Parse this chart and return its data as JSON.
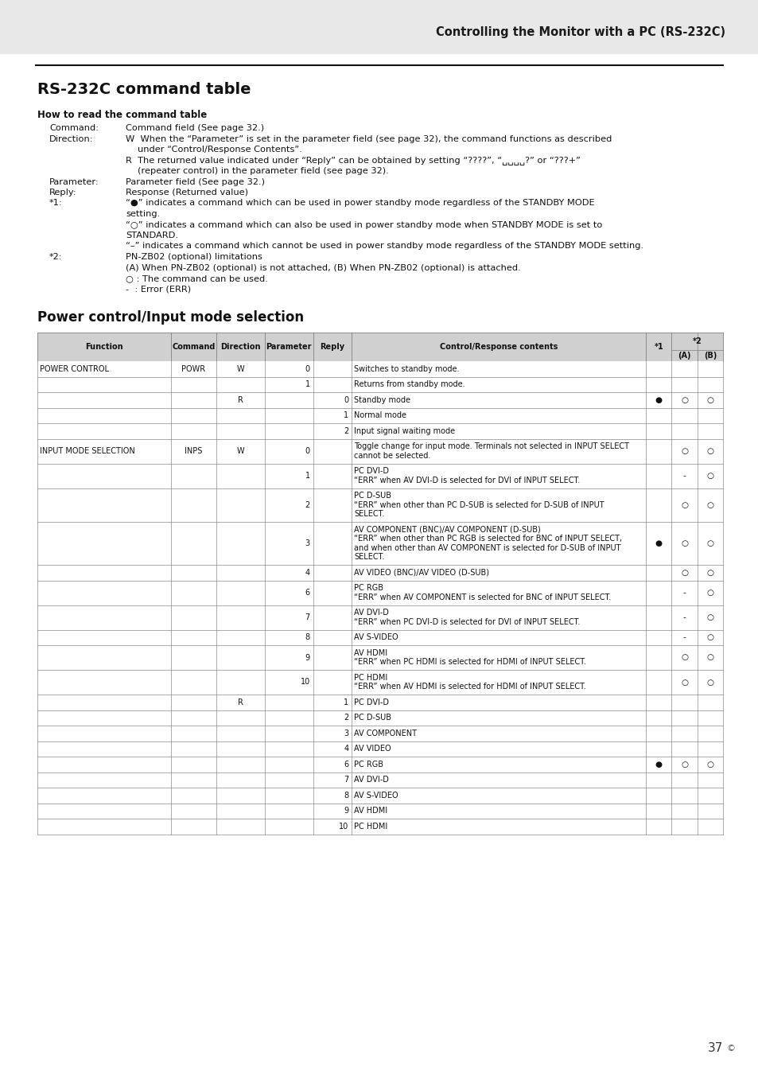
{
  "page_bg": "#ffffff",
  "header_bg": "#e8e8e8",
  "header_text": "Controlling the Monitor with a PC (RS-232C)",
  "title": "RS-232C command table",
  "section_title": "Power control/Input mode selection",
  "how_to_read_title": "How to read the command table",
  "page_number": "37",
  "table_bg_header": "#d0d0d0",
  "table_bg_white": "#ffffff",
  "table_rows": [
    {
      "func": "POWER CONTROL",
      "cmd": "POWR",
      "dir": "W",
      "param": "0",
      "reply": "",
      "contents": "Switches to standby mode.",
      "s1": "",
      "A": "",
      "B": ""
    },
    {
      "func": "",
      "cmd": "",
      "dir": "",
      "param": "1",
      "reply": "",
      "contents": "Returns from standby mode.",
      "s1": "",
      "A": "",
      "B": ""
    },
    {
      "func": "",
      "cmd": "",
      "dir": "R",
      "param": "",
      "reply": "0",
      "contents": "Standby mode",
      "s1": "●",
      "A": "○",
      "B": "○"
    },
    {
      "func": "",
      "cmd": "",
      "dir": "",
      "param": "",
      "reply": "1",
      "contents": "Normal mode",
      "s1": "",
      "A": "",
      "B": ""
    },
    {
      "func": "",
      "cmd": "",
      "dir": "",
      "param": "",
      "reply": "2",
      "contents": "Input signal waiting mode",
      "s1": "",
      "A": "",
      "B": ""
    },
    {
      "func": "INPUT MODE SELECTION",
      "cmd": "INPS",
      "dir": "W",
      "param": "0",
      "reply": "",
      "contents": "Toggle change for input mode. Terminals not selected in INPUT SELECT\ncannot be selected.",
      "s1": "",
      "A": "○",
      "B": "○"
    },
    {
      "func": "",
      "cmd": "",
      "dir": "",
      "param": "1",
      "reply": "",
      "contents": "PC DVI-D\n“ERR” when AV DVI-D is selected for DVI of INPUT SELECT.",
      "s1": "",
      "A": "-",
      "B": "○"
    },
    {
      "func": "",
      "cmd": "",
      "dir": "",
      "param": "2",
      "reply": "",
      "contents": "PC D-SUB\n“ERR” when other than PC D-SUB is selected for D-SUB of INPUT\nSELECT.",
      "s1": "",
      "A": "○",
      "B": "○"
    },
    {
      "func": "",
      "cmd": "",
      "dir": "",
      "param": "3",
      "reply": "",
      "contents": "AV COMPONENT (BNC)/AV COMPONENT (D-SUB)\n“ERR” when other than PC RGB is selected for BNC of INPUT SELECT,\nand when other than AV COMPONENT is selected for D-SUB of INPUT\nSELECT.",
      "s1": "●",
      "A": "○",
      "B": "○"
    },
    {
      "func": "",
      "cmd": "",
      "dir": "",
      "param": "4",
      "reply": "",
      "contents": "AV VIDEO (BNC)/AV VIDEO (D-SUB)",
      "s1": "",
      "A": "○",
      "B": "○"
    },
    {
      "func": "",
      "cmd": "",
      "dir": "",
      "param": "6",
      "reply": "",
      "contents": "PC RGB\n“ERR” when AV COMPONENT is selected for BNC of INPUT SELECT.",
      "s1": "",
      "A": "-",
      "B": "○"
    },
    {
      "func": "",
      "cmd": "",
      "dir": "",
      "param": "7",
      "reply": "",
      "contents": "AV DVI-D\n“ERR” when PC DVI-D is selected for DVI of INPUT SELECT.",
      "s1": "",
      "A": "-",
      "B": "○"
    },
    {
      "func": "",
      "cmd": "",
      "dir": "",
      "param": "8",
      "reply": "",
      "contents": "AV S-VIDEO",
      "s1": "",
      "A": "-",
      "B": "○"
    },
    {
      "func": "",
      "cmd": "",
      "dir": "",
      "param": "9",
      "reply": "",
      "contents": "AV HDMI\n“ERR” when PC HDMI is selected for HDMI of INPUT SELECT.",
      "s1": "",
      "A": "○",
      "B": "○"
    },
    {
      "func": "",
      "cmd": "",
      "dir": "",
      "param": "10",
      "reply": "",
      "contents": "PC HDMI\n“ERR” when AV HDMI is selected for HDMI of INPUT SELECT.",
      "s1": "",
      "A": "○",
      "B": "○"
    },
    {
      "func": "",
      "cmd": "",
      "dir": "R",
      "param": "",
      "reply": "1",
      "contents": "PC DVI-D",
      "s1": "",
      "A": "",
      "B": ""
    },
    {
      "func": "",
      "cmd": "",
      "dir": "",
      "param": "",
      "reply": "2",
      "contents": "PC D-SUB",
      "s1": "",
      "A": "",
      "B": ""
    },
    {
      "func": "",
      "cmd": "",
      "dir": "",
      "param": "",
      "reply": "3",
      "contents": "AV COMPONENT",
      "s1": "",
      "A": "",
      "B": ""
    },
    {
      "func": "",
      "cmd": "",
      "dir": "",
      "param": "",
      "reply": "4",
      "contents": "AV VIDEO",
      "s1": "",
      "A": "",
      "B": ""
    },
    {
      "func": "",
      "cmd": "",
      "dir": "",
      "param": "",
      "reply": "6",
      "contents": "PC RGB",
      "s1": "●",
      "A": "○",
      "B": "○"
    },
    {
      "func": "",
      "cmd": "",
      "dir": "",
      "param": "",
      "reply": "7",
      "contents": "AV DVI-D",
      "s1": "",
      "A": "",
      "B": ""
    },
    {
      "func": "",
      "cmd": "",
      "dir": "",
      "param": "",
      "reply": "8",
      "contents": "AV S-VIDEO",
      "s1": "",
      "A": "",
      "B": ""
    },
    {
      "func": "",
      "cmd": "",
      "dir": "",
      "param": "",
      "reply": "9",
      "contents": "AV HDMI",
      "s1": "",
      "A": "",
      "B": ""
    },
    {
      "func": "",
      "cmd": "",
      "dir": "",
      "param": "",
      "reply": "10",
      "contents": "PC HDMI",
      "s1": "",
      "A": "",
      "B": ""
    }
  ]
}
